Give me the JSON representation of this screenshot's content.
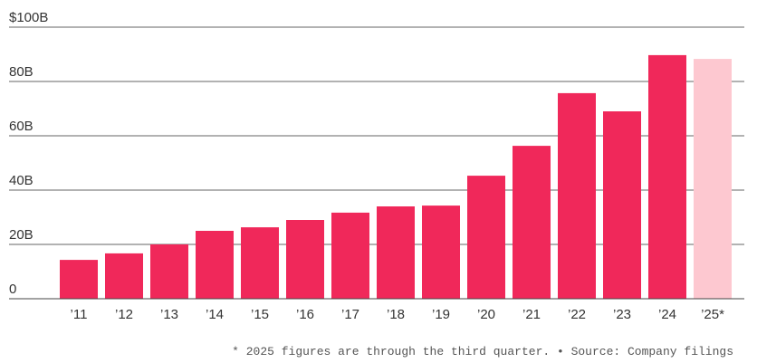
{
  "chart_data": {
    "type": "bar",
    "categories": [
      "’11",
      "’12",
      "’13",
      "’14",
      "’15",
      "’16",
      "’17",
      "’18",
      "’19",
      "’20",
      "’21",
      "’22",
      "’23",
      "’24",
      "’25*"
    ],
    "values": [
      14.3,
      16.7,
      20,
      25,
      26.3,
      29,
      31.7,
      34,
      34.3,
      45.3,
      56.3,
      75.7,
      69,
      89.7,
      88.3
    ],
    "colors": [
      "#f0285a",
      "#f0285a",
      "#f0285a",
      "#f0285a",
      "#f0285a",
      "#f0285a",
      "#f0285a",
      "#f0285a",
      "#f0285a",
      "#f0285a",
      "#f0285a",
      "#f0285a",
      "#f0285a",
      "#f0285a",
      "#fdc8d0"
    ],
    "ylim": [
      0,
      100
    ],
    "yticks": [
      0,
      {
        "value": 20,
        "label": "20B"
      },
      {
        "value": 40,
        "label": "40B"
      },
      {
        "value": 60,
        "label": "60B"
      },
      {
        "value": 80,
        "label": "80B"
      },
      {
        "value": 100,
        "label": "$100B"
      }
    ],
    "grid": true,
    "footnote": "* 2025 figures are through the third quarter. • Source: Company filings"
  }
}
